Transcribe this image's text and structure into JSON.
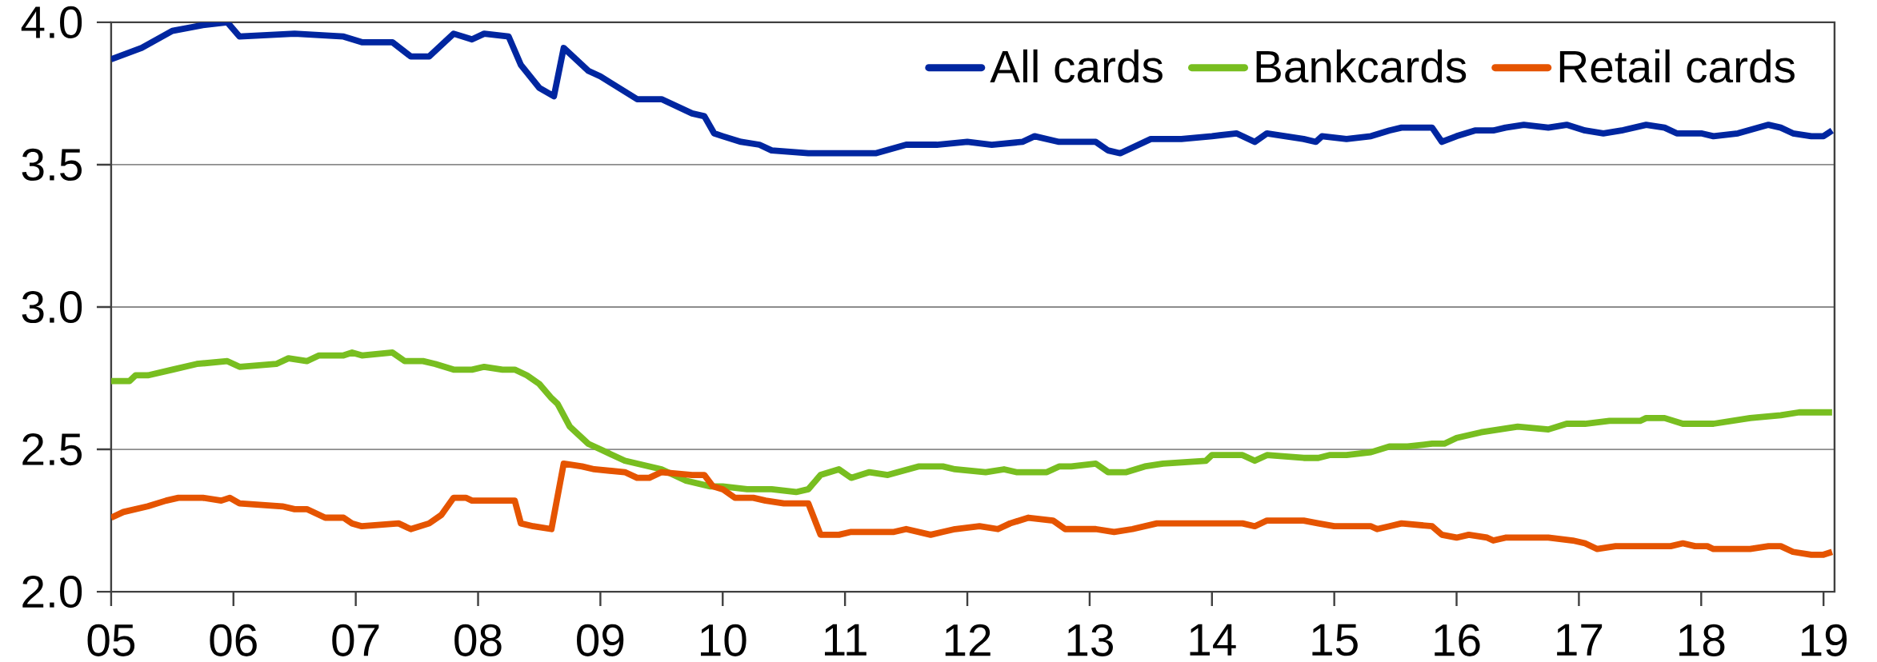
{
  "chart_data": {
    "type": "line",
    "xlim": [
      2005,
      2019.09
    ],
    "ylim": [
      2.0,
      4.0
    ],
    "xticks": [
      {
        "value": 2005,
        "label": "05"
      },
      {
        "value": 2006,
        "label": "06"
      },
      {
        "value": 2007,
        "label": "07"
      },
      {
        "value": 2008,
        "label": "08"
      },
      {
        "value": 2009,
        "label": "09"
      },
      {
        "value": 2010,
        "label": "10"
      },
      {
        "value": 2011,
        "label": "11"
      },
      {
        "value": 2012,
        "label": "12"
      },
      {
        "value": 2013,
        "label": "13"
      },
      {
        "value": 2014,
        "label": "14"
      },
      {
        "value": 2015,
        "label": "15"
      },
      {
        "value": 2016,
        "label": "16"
      },
      {
        "value": 2017,
        "label": "17"
      },
      {
        "value": 2018,
        "label": "18"
      },
      {
        "value": 2019,
        "label": "19"
      }
    ],
    "yticks": [
      {
        "value": 2.0,
        "label": "2.0"
      },
      {
        "value": 2.5,
        "label": "2.5"
      },
      {
        "value": 3.0,
        "label": "3.0"
      },
      {
        "value": 3.5,
        "label": "3.5"
      },
      {
        "value": 4.0,
        "label": "4.0"
      }
    ],
    "grid": "y",
    "legend": "top right",
    "series": [
      {
        "name": "All cards",
        "color": "#0026a0",
        "x": [
          2005.0,
          2005.25,
          2005.5,
          2005.75,
          2005.95,
          2006.05,
          2006.5,
          2006.9,
          2007.05,
          2007.3,
          2007.45,
          2007.6,
          2007.8,
          2007.95,
          2008.05,
          2008.25,
          2008.35,
          2008.5,
          2008.62,
          2008.7,
          2008.9,
          2009.0,
          2009.3,
          2009.5,
          2009.75,
          2009.85,
          2009.93,
          2010.0,
          2010.15,
          2010.3,
          2010.4,
          2010.7,
          2010.8,
          2011.0,
          2011.25,
          2011.5,
          2011.75,
          2012.0,
          2012.2,
          2012.45,
          2012.55,
          2012.75,
          2013.05,
          2013.15,
          2013.25,
          2013.5,
          2013.75,
          2014.0,
          2014.2,
          2014.35,
          2014.45,
          2014.75,
          2014.85,
          2014.9,
          2015.1,
          2015.3,
          2015.45,
          2015.55,
          2015.8,
          2015.88,
          2016.0,
          2016.15,
          2016.3,
          2016.4,
          2016.55,
          2016.75,
          2016.9,
          2017.05,
          2017.2,
          2017.35,
          2017.55,
          2017.7,
          2017.8,
          2018.0,
          2018.1,
          2018.3,
          2018.55,
          2018.65,
          2018.75,
          2018.9,
          2019.0,
          2019.07
        ],
        "values": [
          3.87,
          3.91,
          3.97,
          3.99,
          4.0,
          3.95,
          3.96,
          3.95,
          3.93,
          3.93,
          3.88,
          3.88,
          3.96,
          3.94,
          3.96,
          3.95,
          3.85,
          3.77,
          3.74,
          3.91,
          3.83,
          3.81,
          3.73,
          3.73,
          3.68,
          3.67,
          3.61,
          3.6,
          3.58,
          3.57,
          3.55,
          3.54,
          3.54,
          3.54,
          3.54,
          3.57,
          3.57,
          3.58,
          3.57,
          3.58,
          3.6,
          3.58,
          3.58,
          3.55,
          3.54,
          3.59,
          3.59,
          3.6,
          3.61,
          3.58,
          3.61,
          3.59,
          3.58,
          3.6,
          3.59,
          3.6,
          3.62,
          3.63,
          3.63,
          3.58,
          3.6,
          3.62,
          3.62,
          3.63,
          3.64,
          3.63,
          3.64,
          3.62,
          3.61,
          3.62,
          3.64,
          3.63,
          3.61,
          3.61,
          3.6,
          3.61,
          3.64,
          3.63,
          3.61,
          3.6,
          3.6,
          3.62
        ]
      },
      {
        "name": "Bankcards",
        "color": "#78be20",
        "x": [
          2005.0,
          2005.15,
          2005.2,
          2005.3,
          2005.5,
          2005.7,
          2005.95,
          2006.05,
          2006.35,
          2006.45,
          2006.6,
          2006.7,
          2006.9,
          2006.97,
          2007.05,
          2007.3,
          2007.4,
          2007.55,
          2007.65,
          2007.8,
          2007.95,
          2008.05,
          2008.2,
          2008.3,
          2008.4,
          2008.5,
          2008.6,
          2008.65,
          2008.75,
          2008.9,
          2009.0,
          2009.2,
          2009.5,
          2009.7,
          2009.9,
          2010.0,
          2010.2,
          2010.4,
          2010.6,
          2010.7,
          2010.8,
          2010.95,
          2011.05,
          2011.2,
          2011.35,
          2011.6,
          2011.8,
          2011.9,
          2012.15,
          2012.3,
          2012.4,
          2012.65,
          2012.75,
          2012.85,
          2013.05,
          2013.15,
          2013.3,
          2013.45,
          2013.6,
          2013.95,
          2014.0,
          2014.25,
          2014.35,
          2014.45,
          2014.75,
          2014.87,
          2014.96,
          2015.1,
          2015.3,
          2015.45,
          2015.6,
          2015.8,
          2015.9,
          2016.0,
          2016.1,
          2016.2,
          2016.35,
          2016.5,
          2016.75,
          2016.9,
          2017.05,
          2017.25,
          2017.5,
          2017.55,
          2017.7,
          2017.85,
          2018.0,
          2018.1,
          2018.4,
          2018.65,
          2018.8,
          2019.0,
          2019.07
        ],
        "values": [
          2.74,
          2.74,
          2.76,
          2.76,
          2.78,
          2.8,
          2.81,
          2.79,
          2.8,
          2.82,
          2.81,
          2.83,
          2.83,
          2.84,
          2.83,
          2.84,
          2.81,
          2.81,
          2.8,
          2.78,
          2.78,
          2.79,
          2.78,
          2.78,
          2.76,
          2.73,
          2.68,
          2.66,
          2.58,
          2.52,
          2.5,
          2.46,
          2.43,
          2.39,
          2.37,
          2.37,
          2.36,
          2.36,
          2.35,
          2.36,
          2.41,
          2.43,
          2.4,
          2.42,
          2.41,
          2.44,
          2.44,
          2.43,
          2.42,
          2.43,
          2.42,
          2.42,
          2.44,
          2.44,
          2.45,
          2.42,
          2.42,
          2.44,
          2.45,
          2.46,
          2.48,
          2.48,
          2.46,
          2.48,
          2.47,
          2.47,
          2.48,
          2.48,
          2.49,
          2.51,
          2.51,
          2.52,
          2.52,
          2.54,
          2.55,
          2.56,
          2.57,
          2.58,
          2.57,
          2.59,
          2.59,
          2.6,
          2.6,
          2.61,
          2.61,
          2.59,
          2.59,
          2.59,
          2.61,
          2.62,
          2.63,
          2.63,
          2.63
        ]
      },
      {
        "name": "Retail cards",
        "color": "#e55400",
        "x": [
          2005.0,
          2005.1,
          2005.3,
          2005.45,
          2005.55,
          2005.75,
          2005.9,
          2005.97,
          2006.05,
          2006.4,
          2006.5,
          2006.6,
          2006.65,
          2006.75,
          2006.9,
          2006.97,
          2007.05,
          2007.35,
          2007.45,
          2007.6,
          2007.7,
          2007.8,
          2007.9,
          2007.95,
          2008.1,
          2008.3,
          2008.35,
          2008.45,
          2008.6,
          2008.7,
          2008.85,
          2008.95,
          2009.2,
          2009.3,
          2009.4,
          2009.5,
          2009.75,
          2009.85,
          2009.92,
          2010.0,
          2010.1,
          2010.25,
          2010.35,
          2010.5,
          2010.7,
          2010.8,
          2010.95,
          2011.05,
          2011.25,
          2011.4,
          2011.5,
          2011.7,
          2011.8,
          2011.9,
          2012.1,
          2012.25,
          2012.35,
          2012.5,
          2012.7,
          2012.8,
          2013.05,
          2013.2,
          2013.35,
          2013.55,
          2013.8,
          2014.0,
          2014.25,
          2014.35,
          2014.45,
          2014.75,
          2014.87,
          2015.0,
          2015.1,
          2015.3,
          2015.35,
          2015.45,
          2015.55,
          2015.8,
          2015.88,
          2016.0,
          2016.1,
          2016.25,
          2016.3,
          2016.4,
          2016.55,
          2016.75,
          2016.95,
          2017.05,
          2017.15,
          2017.3,
          2017.5,
          2017.75,
          2017.85,
          2017.95,
          2018.05,
          2018.1,
          2018.4,
          2018.55,
          2018.65,
          2018.75,
          2018.9,
          2019.0,
          2019.07
        ],
        "values": [
          2.26,
          2.28,
          2.3,
          2.32,
          2.33,
          2.33,
          2.32,
          2.33,
          2.31,
          2.3,
          2.29,
          2.29,
          2.28,
          2.26,
          2.26,
          2.24,
          2.23,
          2.24,
          2.22,
          2.24,
          2.27,
          2.33,
          2.33,
          2.32,
          2.32,
          2.32,
          2.24,
          2.23,
          2.22,
          2.45,
          2.44,
          2.43,
          2.42,
          2.4,
          2.4,
          2.42,
          2.41,
          2.41,
          2.37,
          2.36,
          2.33,
          2.33,
          2.32,
          2.31,
          2.31,
          2.2,
          2.2,
          2.21,
          2.21,
          2.21,
          2.22,
          2.2,
          2.21,
          2.22,
          2.23,
          2.22,
          2.24,
          2.26,
          2.25,
          2.22,
          2.22,
          2.21,
          2.22,
          2.24,
          2.24,
          2.24,
          2.24,
          2.23,
          2.25,
          2.25,
          2.24,
          2.23,
          2.23,
          2.23,
          2.22,
          2.23,
          2.24,
          2.23,
          2.2,
          2.19,
          2.2,
          2.19,
          2.18,
          2.19,
          2.19,
          2.19,
          2.18,
          2.17,
          2.15,
          2.16,
          2.16,
          2.16,
          2.17,
          2.16,
          2.16,
          2.15,
          2.15,
          2.16,
          2.16,
          2.14,
          2.13,
          2.13,
          2.14
        ]
      }
    ]
  }
}
